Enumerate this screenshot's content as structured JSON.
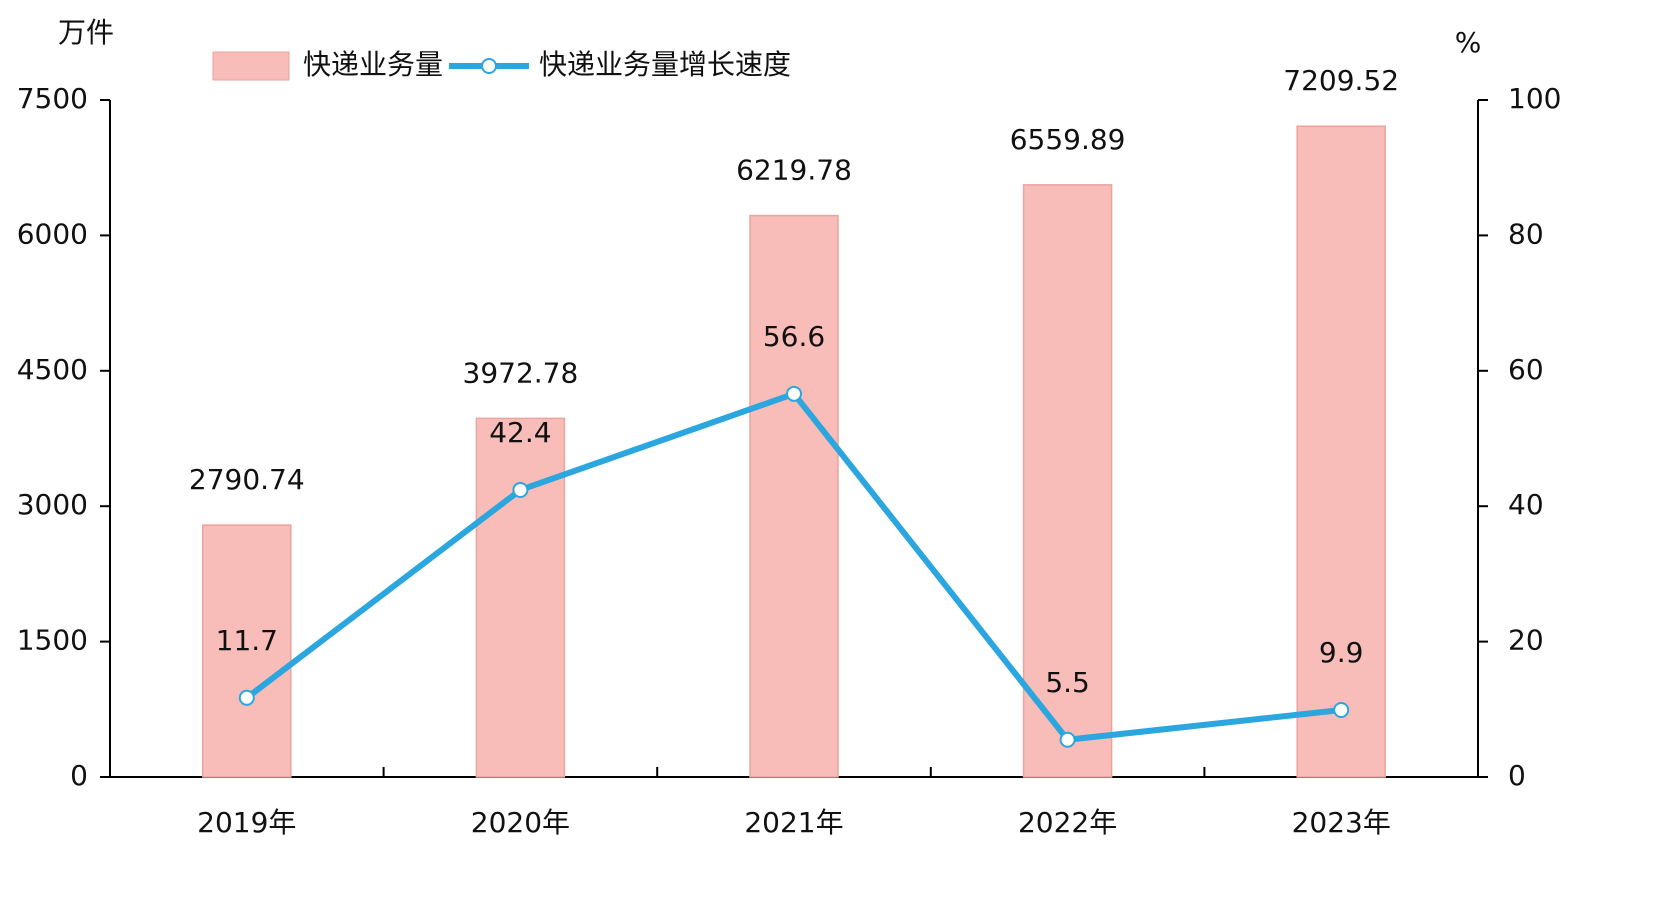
{
  "chart_data": {
    "type": "combo",
    "y_label": "万件",
    "y2_label": "%",
    "categories": [
      "2019年",
      "2020年",
      "2021年",
      "2022年",
      "2023年"
    ],
    "series": [
      {
        "name": "快递业务量",
        "type": "bar",
        "color": "#f8bdb8",
        "values": [
          2790.74,
          3972.78,
          6219.78,
          6559.89,
          7209.52
        ]
      },
      {
        "name": "快递业务量增长速度",
        "type": "line",
        "axis": "y2",
        "color": "#2ba6de",
        "values": [
          11.7,
          42.4,
          56.6,
          5.5,
          9.9
        ]
      }
    ],
    "ylim": [
      0,
      7500
    ],
    "yticks": [
      0,
      1500,
      3000,
      4500,
      6000,
      7500
    ],
    "y2lim": [
      0,
      100
    ],
    "y2ticks": [
      0,
      20,
      40,
      60,
      80,
      100
    ]
  }
}
